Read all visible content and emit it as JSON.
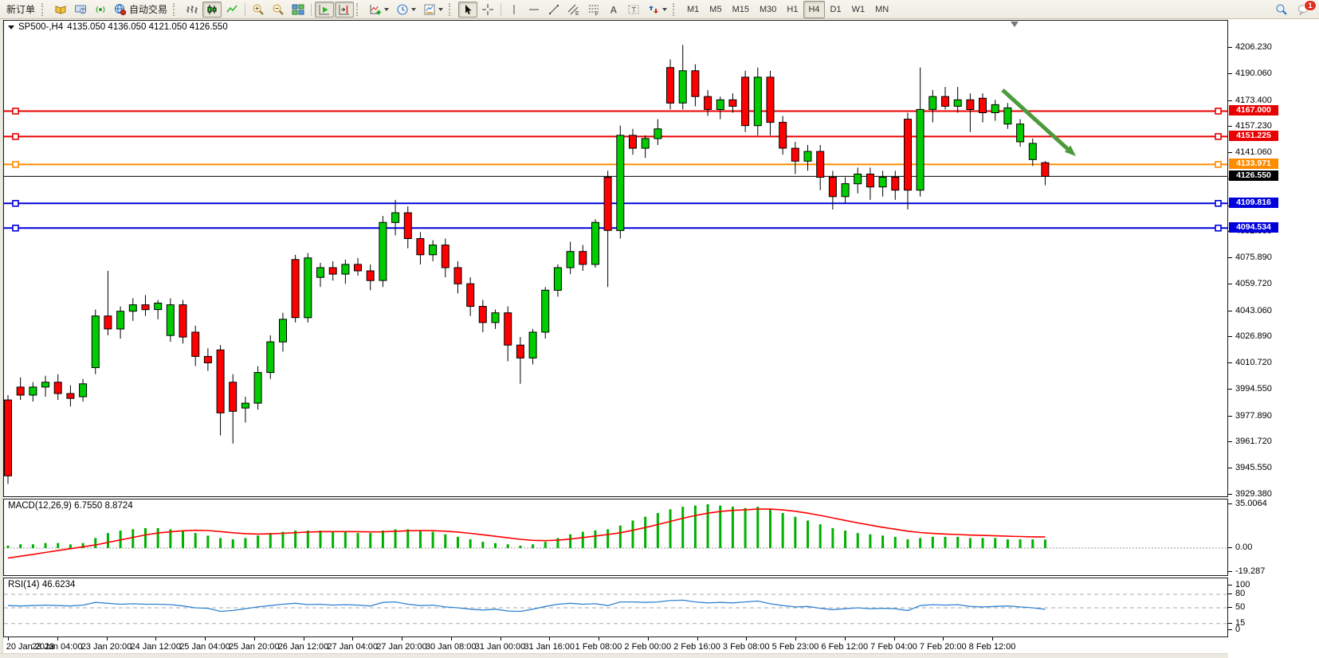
{
  "toolbar": {
    "new_order_label": "新订单",
    "autotrading_label": "自动交易",
    "timeframes": [
      "M1",
      "M5",
      "M15",
      "M30",
      "H1",
      "H4",
      "D1",
      "W1",
      "MN"
    ],
    "active_timeframe": "H4",
    "notification_badge": "1"
  },
  "chart_header": {
    "symbol": "SP500-,H4",
    "ohlc": "4135.050 4136.050 4121.050 4126.550"
  },
  "indicators": {
    "macd_label": "MACD(12,26,9)",
    "macd_values": "6.7550 8.8724",
    "rsi_label": "RSI(14)",
    "rsi_values": "46.6234"
  },
  "chart_data": {
    "type": "candlestick",
    "symbol": "SP500-",
    "timeframe": "H4",
    "up_color": "#00cc00",
    "down_color": "#ff0000",
    "price_axis_ticks": [
      4206.23,
      4190.06,
      4173.4,
      4157.23,
      4141.06,
      4124.89,
      4108.23,
      4092.06,
      4075.89,
      4059.72,
      4043.06,
      4026.89,
      4010.72,
      3994.55,
      3977.89,
      3961.72,
      3945.55,
      3929.38
    ],
    "price_levels": [
      {
        "price": 4167.0,
        "label": "4167.000",
        "color": "#e80000",
        "type": "resistance"
      },
      {
        "price": 4151.225,
        "label": "4151.225",
        "color": "#e80000",
        "type": "resistance"
      },
      {
        "price": 4133.971,
        "label": "4133.971",
        "color": "#ff8c00",
        "type": "pivot"
      },
      {
        "price": 4109.816,
        "label": "4109.816",
        "color": "#0000dd",
        "type": "support"
      },
      {
        "price": 4094.534,
        "label": "4094.534",
        "color": "#0000dd",
        "type": "support"
      }
    ],
    "current_price": 4126.55,
    "current_price_label": "4126.550",
    "annotation_arrow": {
      "color": "#4c9a3c",
      "note": "bearish projection toward 4133.971"
    },
    "candles": [
      [
        3988,
        3991,
        3936,
        3941
      ],
      [
        3996,
        4002,
        3988,
        3991
      ],
      [
        3991,
        3999,
        3987,
        3996
      ],
      [
        3996,
        4003,
        3990,
        3999
      ],
      [
        3999,
        4004,
        3988,
        3992
      ],
      [
        3992,
        3997,
        3984,
        3989
      ],
      [
        3990,
        4001,
        3987,
        3998
      ],
      [
        4008,
        4044,
        4004,
        4040
      ],
      [
        4040,
        4068,
        4028,
        4032
      ],
      [
        4032,
        4046,
        4026,
        4043
      ],
      [
        4043,
        4051,
        4037,
        4047
      ],
      [
        4047,
        4053,
        4040,
        4044
      ],
      [
        4044,
        4050,
        4038,
        4048
      ],
      [
        4028,
        4051,
        4024,
        4047
      ],
      [
        4047,
        4050,
        4023,
        4027
      ],
      [
        4030,
        4034,
        4009,
        4015
      ],
      [
        4015,
        4020,
        4006,
        4011
      ],
      [
        4019,
        4022,
        3966,
        3980
      ],
      [
        3999,
        4004,
        3961,
        3981
      ],
      [
        3983,
        3990,
        3974,
        3986
      ],
      [
        3986,
        4009,
        3982,
        4005
      ],
      [
        4005,
        4028,
        4001,
        4024
      ],
      [
        4024,
        4042,
        4018,
        4038
      ],
      [
        4075,
        4078,
        4036,
        4039
      ],
      [
        4039,
        4079,
        4036,
        4076
      ],
      [
        4064,
        4073,
        4058,
        4070
      ],
      [
        4070,
        4074,
        4062,
        4066
      ],
      [
        4066,
        4075,
        4060,
        4072
      ],
      [
        4072,
        4076,
        4065,
        4068
      ],
      [
        4068,
        4072,
        4056,
        4062
      ],
      [
        4062,
        4102,
        4058,
        4098
      ],
      [
        4098,
        4112,
        4090,
        4104
      ],
      [
        4104,
        4108,
        4082,
        4088
      ],
      [
        4088,
        4092,
        4072,
        4078
      ],
      [
        4078,
        4087,
        4074,
        4084
      ],
      [
        4084,
        4088,
        4064,
        4070
      ],
      [
        4070,
        4074,
        4054,
        4060
      ],
      [
        4060,
        4064,
        4040,
        4046
      ],
      [
        4046,
        4050,
        4030,
        4036
      ],
      [
        4036,
        4044,
        4032,
        4042
      ],
      [
        4042,
        4046,
        4012,
        4022
      ],
      [
        4022,
        4027,
        3998,
        4014
      ],
      [
        4014,
        4032,
        4010,
        4030
      ],
      [
        4030,
        4058,
        4026,
        4056
      ],
      [
        4056,
        4072,
        4052,
        4070
      ],
      [
        4070,
        4086,
        4066,
        4080
      ],
      [
        4080,
        4084,
        4068,
        4072
      ],
      [
        4072,
        4100,
        4070,
        4098
      ],
      [
        4126,
        4130,
        4058,
        4093
      ],
      [
        4093,
        4158,
        4088,
        4152
      ],
      [
        4152,
        4156,
        4140,
        4144
      ],
      [
        4144,
        4152,
        4138,
        4150
      ],
      [
        4150,
        4162,
        4146,
        4156
      ],
      [
        4194,
        4199,
        4168,
        4172
      ],
      [
        4172,
        4208,
        4168,
        4192
      ],
      [
        4192,
        4196,
        4170,
        4176
      ],
      [
        4176,
        4180,
        4164,
        4168
      ],
      [
        4168,
        4176,
        4162,
        4174
      ],
      [
        4174,
        4178,
        4166,
        4170
      ],
      [
        4188,
        4192,
        4154,
        4158
      ],
      [
        4158,
        4194,
        4152,
        4188
      ],
      [
        4188,
        4192,
        4152,
        4160
      ],
      [
        4160,
        4164,
        4140,
        4144
      ],
      [
        4144,
        4148,
        4128,
        4136
      ],
      [
        4136,
        4146,
        4130,
        4142
      ],
      [
        4142,
        4146,
        4118,
        4126
      ],
      [
        4126,
        4130,
        4106,
        4114
      ],
      [
        4114,
        4126,
        4110,
        4122
      ],
      [
        4122,
        4132,
        4116,
        4128
      ],
      [
        4128,
        4132,
        4112,
        4120
      ],
      [
        4120,
        4130,
        4114,
        4126
      ],
      [
        4126,
        4130,
        4112,
        4118
      ],
      [
        4162,
        4166,
        4106,
        4118
      ],
      [
        4118,
        4194,
        4114,
        4168
      ],
      [
        4168,
        4180,
        4160,
        4176
      ],
      [
        4176,
        4182,
        4168,
        4170
      ],
      [
        4170,
        4182,
        4166,
        4174
      ],
      [
        4174,
        4178,
        4154,
        4168
      ],
      [
        4175,
        4178,
        4160,
        4166
      ],
      [
        4166,
        4174,
        4161,
        4171
      ],
      [
        4159,
        4172,
        4156,
        4169
      ],
      [
        4148,
        4162,
        4145,
        4159
      ],
      [
        4137,
        4150,
        4133,
        4147
      ],
      [
        4135.05,
        4136.05,
        4121.05,
        4126.55
      ]
    ],
    "time_labels": [
      "20 Jan 2023",
      "23 Jan 04:00",
      "23 Jan 20:00",
      "24 Jan 12:00",
      "25 Jan 04:00",
      "25 Jan 20:00",
      "26 Jan 12:00",
      "27 Jan 04:00",
      "27 Jan 20:00",
      "30 Jan 08:00",
      "31 Jan 00:00",
      "31 Jan 16:00",
      "1 Feb 08:00",
      "2 Feb 00:00",
      "2 Feb 16:00",
      "3 Feb 08:00",
      "5 Feb 23:00",
      "6 Feb 12:00",
      "7 Feb 04:00",
      "7 Feb 20:00",
      "8 Feb 12:00"
    ],
    "macd": {
      "histogram_color": "#00b000",
      "signal_color": "#ff0000",
      "axis": [
        {
          "v": 35.0064,
          "t": "35.0064"
        },
        {
          "v": 0,
          "t": "0.00"
        },
        {
          "v": -19.287,
          "t": "-19.287"
        }
      ],
      "histogram": [
        2,
        3,
        3,
        4,
        4,
        3,
        4,
        8,
        12,
        14,
        15,
        16,
        16,
        15,
        14,
        12,
        10,
        8,
        7,
        8,
        10,
        12,
        13,
        14,
        14,
        14,
        13,
        13,
        12,
        12,
        14,
        15,
        15,
        14,
        13,
        11,
        9,
        7,
        5,
        4,
        3,
        2,
        3,
        5,
        8,
        11,
        13,
        14,
        15,
        18,
        22,
        25,
        28,
        31,
        33,
        34,
        35,
        34,
        33,
        32,
        33,
        31,
        28,
        25,
        22,
        19,
        16,
        14,
        12,
        11,
        10,
        9,
        7,
        8,
        9,
        9,
        9,
        8,
        8,
        8,
        7,
        7,
        7,
        6.8
      ],
      "signal": [
        -8,
        -6.5,
        -5,
        -3.5,
        -2,
        -0.5,
        1,
        2.5,
        4.5,
        6.5,
        8.5,
        10.5,
        12,
        13,
        13.8,
        14.2,
        14,
        13.2,
        12.2,
        11.5,
        11.2,
        11.4,
        11.8,
        12.3,
        12.8,
        13.1,
        13.2,
        13.2,
        13.1,
        12.9,
        13,
        13.4,
        13.8,
        14,
        13.9,
        13.5,
        12.8,
        11.8,
        10.6,
        9.4,
        8.2,
        7,
        6.2,
        5.9,
        6.3,
        7.2,
        8.4,
        9.6,
        10.8,
        12.2,
        14.2,
        16.4,
        18.8,
        21.3,
        23.8,
        26,
        27.9,
        29.2,
        30.1,
        30.6,
        31.1,
        31.1,
        30.5,
        29.4,
        27.9,
        26.1,
        24.1,
        22.1,
        20.1,
        18.3,
        16.6,
        15.1,
        13.5,
        12.4,
        11.7,
        11.2,
        10.8,
        10.4,
        10.1,
        9.8,
        9.5,
        9.2,
        9.0,
        8.87
      ]
    },
    "rsi": {
      "line_color": "#2f83d0",
      "levels": [
        80,
        50,
        15
      ],
      "axis": [
        {
          "v": 100,
          "t": "100"
        },
        {
          "v": 80,
          "t": "80"
        },
        {
          "v": 50,
          "t": "50"
        },
        {
          "v": 15,
          "t": "15"
        },
        {
          "v": 0,
          "t": "0"
        }
      ],
      "values": [
        55,
        54,
        55,
        56,
        55,
        54,
        56,
        62,
        60,
        58,
        59,
        58,
        58,
        57,
        54,
        50,
        49,
        42,
        44,
        48,
        52,
        55,
        58,
        60,
        57,
        58,
        56,
        57,
        56,
        54,
        62,
        63,
        58,
        55,
        56,
        52,
        50,
        47,
        45,
        47,
        43,
        42,
        47,
        53,
        58,
        60,
        58,
        59,
        55,
        63,
        63,
        62,
        63,
        66,
        67,
        63,
        61,
        62,
        61,
        63,
        65,
        59,
        55,
        52,
        53,
        49,
        46,
        48,
        50,
        48,
        49,
        48,
        44,
        55,
        57,
        56,
        57,
        53,
        52,
        53,
        54,
        52,
        50,
        46.62
      ]
    }
  }
}
